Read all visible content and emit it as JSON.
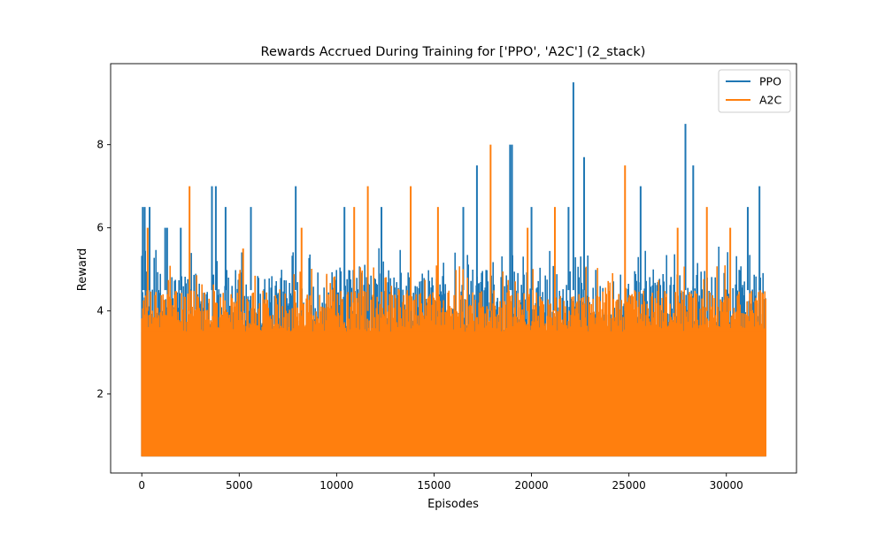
{
  "chart_data": {
    "type": "line",
    "title": "Rewards Accrued During Training for ['PPO', 'A2C'] (2_stack)",
    "xlabel": "Episodes",
    "ylabel": "Reward",
    "xlim": [
      -1600,
      33600
    ],
    "ylim": [
      0.1,
      9.95
    ],
    "x_ticks": [
      0,
      5000,
      10000,
      15000,
      20000,
      25000,
      30000
    ],
    "y_ticks": [
      2,
      4,
      6,
      8
    ],
    "x_tick_labels": [
      "0",
      "5000",
      "10000",
      "15000",
      "20000",
      "25000",
      "30000"
    ],
    "y_tick_labels": [
      "2",
      "4",
      "6",
      "8"
    ],
    "grid": false,
    "legend_position": "top-right",
    "n_episodes": 32000,
    "value_floor": 0.5,
    "series": [
      {
        "name": "PPO",
        "color": "#1f77b4",
        "typical_peak_range": [
          3.5,
          5.0
        ],
        "spikes": [
          {
            "x": 50,
            "y": 6.5
          },
          {
            "x": 150,
            "y": 6.5
          },
          {
            "x": 400,
            "y": 6.5
          },
          {
            "x": 1200,
            "y": 6.0
          },
          {
            "x": 1300,
            "y": 6.0
          },
          {
            "x": 2000,
            "y": 6.0
          },
          {
            "x": 3600,
            "y": 7.0
          },
          {
            "x": 3800,
            "y": 7.0
          },
          {
            "x": 4300,
            "y": 6.5
          },
          {
            "x": 5600,
            "y": 6.5
          },
          {
            "x": 7900,
            "y": 7.0
          },
          {
            "x": 10400,
            "y": 6.5
          },
          {
            "x": 12300,
            "y": 6.5
          },
          {
            "x": 16500,
            "y": 6.5
          },
          {
            "x": 17200,
            "y": 7.5
          },
          {
            "x": 18900,
            "y": 8.0
          },
          {
            "x": 19000,
            "y": 8.0
          },
          {
            "x": 20000,
            "y": 6.5
          },
          {
            "x": 21900,
            "y": 6.5
          },
          {
            "x": 22150,
            "y": 9.5
          },
          {
            "x": 22700,
            "y": 7.7
          },
          {
            "x": 25600,
            "y": 7.0
          },
          {
            "x": 27900,
            "y": 8.5
          },
          {
            "x": 28300,
            "y": 7.5
          },
          {
            "x": 31100,
            "y": 6.5
          },
          {
            "x": 31700,
            "y": 7.0
          }
        ]
      },
      {
        "name": "A2C",
        "color": "#ff7f0e",
        "typical_peak_range": [
          3.5,
          4.5
        ],
        "spikes": [
          {
            "x": 2450,
            "y": 7.0
          },
          {
            "x": 11600,
            "y": 7.0
          },
          {
            "x": 13800,
            "y": 7.0
          },
          {
            "x": 17900,
            "y": 8.0
          },
          {
            "x": 24800,
            "y": 7.5
          },
          {
            "x": 21200,
            "y": 6.5
          },
          {
            "x": 10900,
            "y": 6.5
          },
          {
            "x": 15200,
            "y": 6.5
          },
          {
            "x": 29000,
            "y": 6.5
          },
          {
            "x": 8200,
            "y": 6.0
          },
          {
            "x": 300,
            "y": 6.0
          },
          {
            "x": 27500,
            "y": 6.0
          },
          {
            "x": 19800,
            "y": 6.0
          },
          {
            "x": 5200,
            "y": 5.5
          },
          {
            "x": 30200,
            "y": 6.0
          }
        ]
      }
    ]
  }
}
